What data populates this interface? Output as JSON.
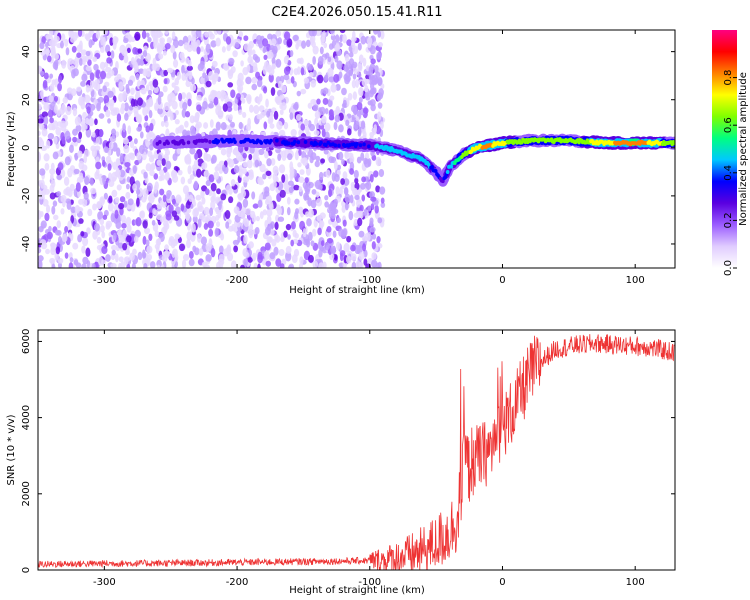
{
  "title": "C2E4.2026.050.15.41.R11",
  "chart_data": [
    {
      "type": "heatmap",
      "xlabel": "Height of straight line (km)",
      "ylabel": "Frequency (Hz)",
      "xlim": [
        -350,
        130
      ],
      "ylim": [
        -50,
        49
      ],
      "x_ticks": [
        -300,
        -200,
        -100,
        0,
        100
      ],
      "y_ticks": [
        -40,
        -20,
        0,
        20,
        40
      ],
      "colorbar": {
        "label": "Normalized spectral amplitude",
        "range": [
          0.0,
          1.0
        ],
        "ticks": [
          0.0,
          0.2,
          0.4,
          0.6,
          0.8
        ],
        "tick_labels": [
          "0.0",
          "0.2",
          "0.4",
          "0.6",
          "0.8"
        ],
        "colormap": [
          "#ffffff",
          "#e0ccff",
          "#9b5cff",
          "#5a00e0",
          "#0000ff",
          "#00c8ff",
          "#00ff80",
          "#80ff00",
          "#ffff00",
          "#ff8000",
          "#ff0000",
          "#ff0080"
        ]
      },
      "noise_region": {
        "x_from": -350,
        "x_to": -90,
        "y_from": -50,
        "y_to": 49,
        "amplitude": 0.15
      },
      "ridge": {
        "x": [
          -260,
          -200,
          -150,
          -100,
          -80,
          -60,
          -50,
          -45,
          -40,
          -30,
          -20,
          -10,
          0,
          20,
          50,
          80,
          100,
          130
        ],
        "y": [
          2,
          3,
          2,
          1,
          -1,
          -5,
          -10,
          -14,
          -8,
          -3,
          0,
          1,
          2,
          3,
          3,
          2,
          2,
          2
        ],
        "amplitude": [
          0.25,
          0.35,
          0.4,
          0.4,
          0.45,
          0.5,
          0.35,
          0.3,
          0.45,
          0.6,
          0.75,
          0.8,
          0.7,
          0.6,
          0.6,
          0.75,
          0.85,
          0.6
        ]
      }
    },
    {
      "type": "line",
      "xlabel": "Height of straight line (km)",
      "ylabel": "SNR (10 * v/v)",
      "xlim": [
        -350,
        130
      ],
      "ylim": [
        0,
        6300
      ],
      "x_ticks": [
        -300,
        -200,
        -100,
        0,
        100
      ],
      "y_ticks": [
        0,
        2000,
        4000,
        6000
      ],
      "series": [
        {
          "color": "#ee3333",
          "x": [
            -350,
            -300,
            -250,
            -200,
            -150,
            -110,
            -90,
            -75,
            -60,
            -50,
            -40,
            -35,
            -31,
            -28,
            -26,
            -22,
            -15,
            -8,
            -2,
            3,
            8,
            15,
            22,
            30,
            40,
            55,
            70,
            90,
            110,
            130
          ],
          "y": [
            150,
            170,
            180,
            200,
            220,
            240,
            260,
            350,
            500,
            700,
            1000,
            1300,
            2000,
            3200,
            2600,
            2900,
            3000,
            3200,
            3700,
            3900,
            4200,
            4700,
            5200,
            5500,
            5800,
            5900,
            5950,
            5900,
            5850,
            5700
          ]
        }
      ]
    }
  ]
}
